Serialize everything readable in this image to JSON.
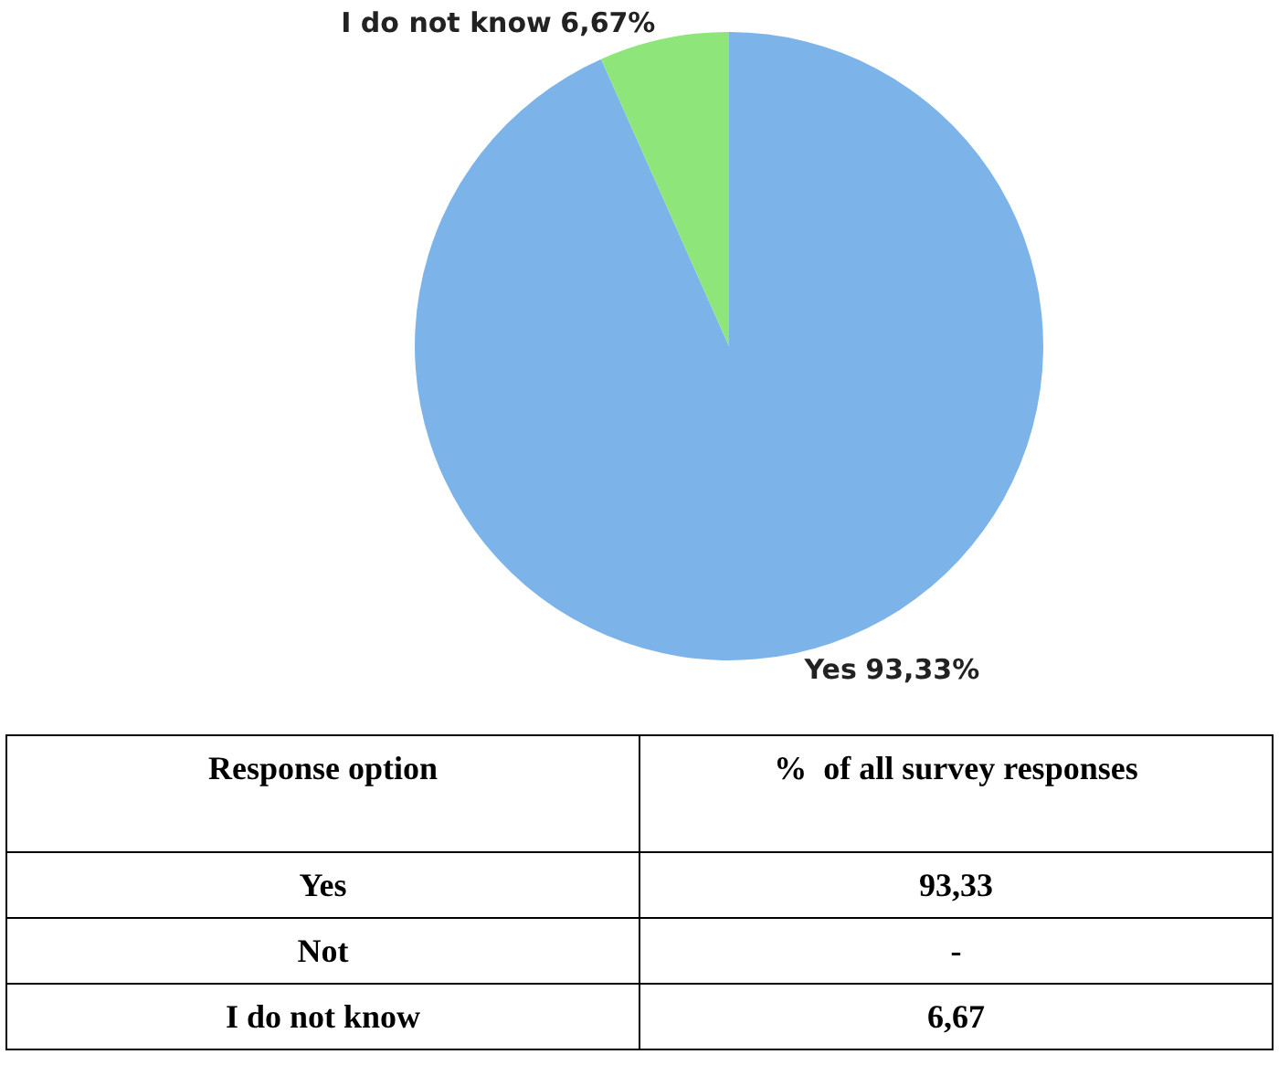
{
  "chart_data": {
    "type": "pie",
    "categories": [
      "Yes",
      "I do not know"
    ],
    "values": [
      93.33,
      6.67
    ],
    "colors": [
      "#7cb4ea",
      "#8ee67a"
    ],
    "value_labels": [
      "93,33%",
      "6,67%"
    ],
    "annotations": [
      "Response option",
      "%  of all survey responses",
      "Yes",
      "93,33",
      "Not",
      "-",
      "I do not know",
      "6,67"
    ],
    "legend": false
  }
}
